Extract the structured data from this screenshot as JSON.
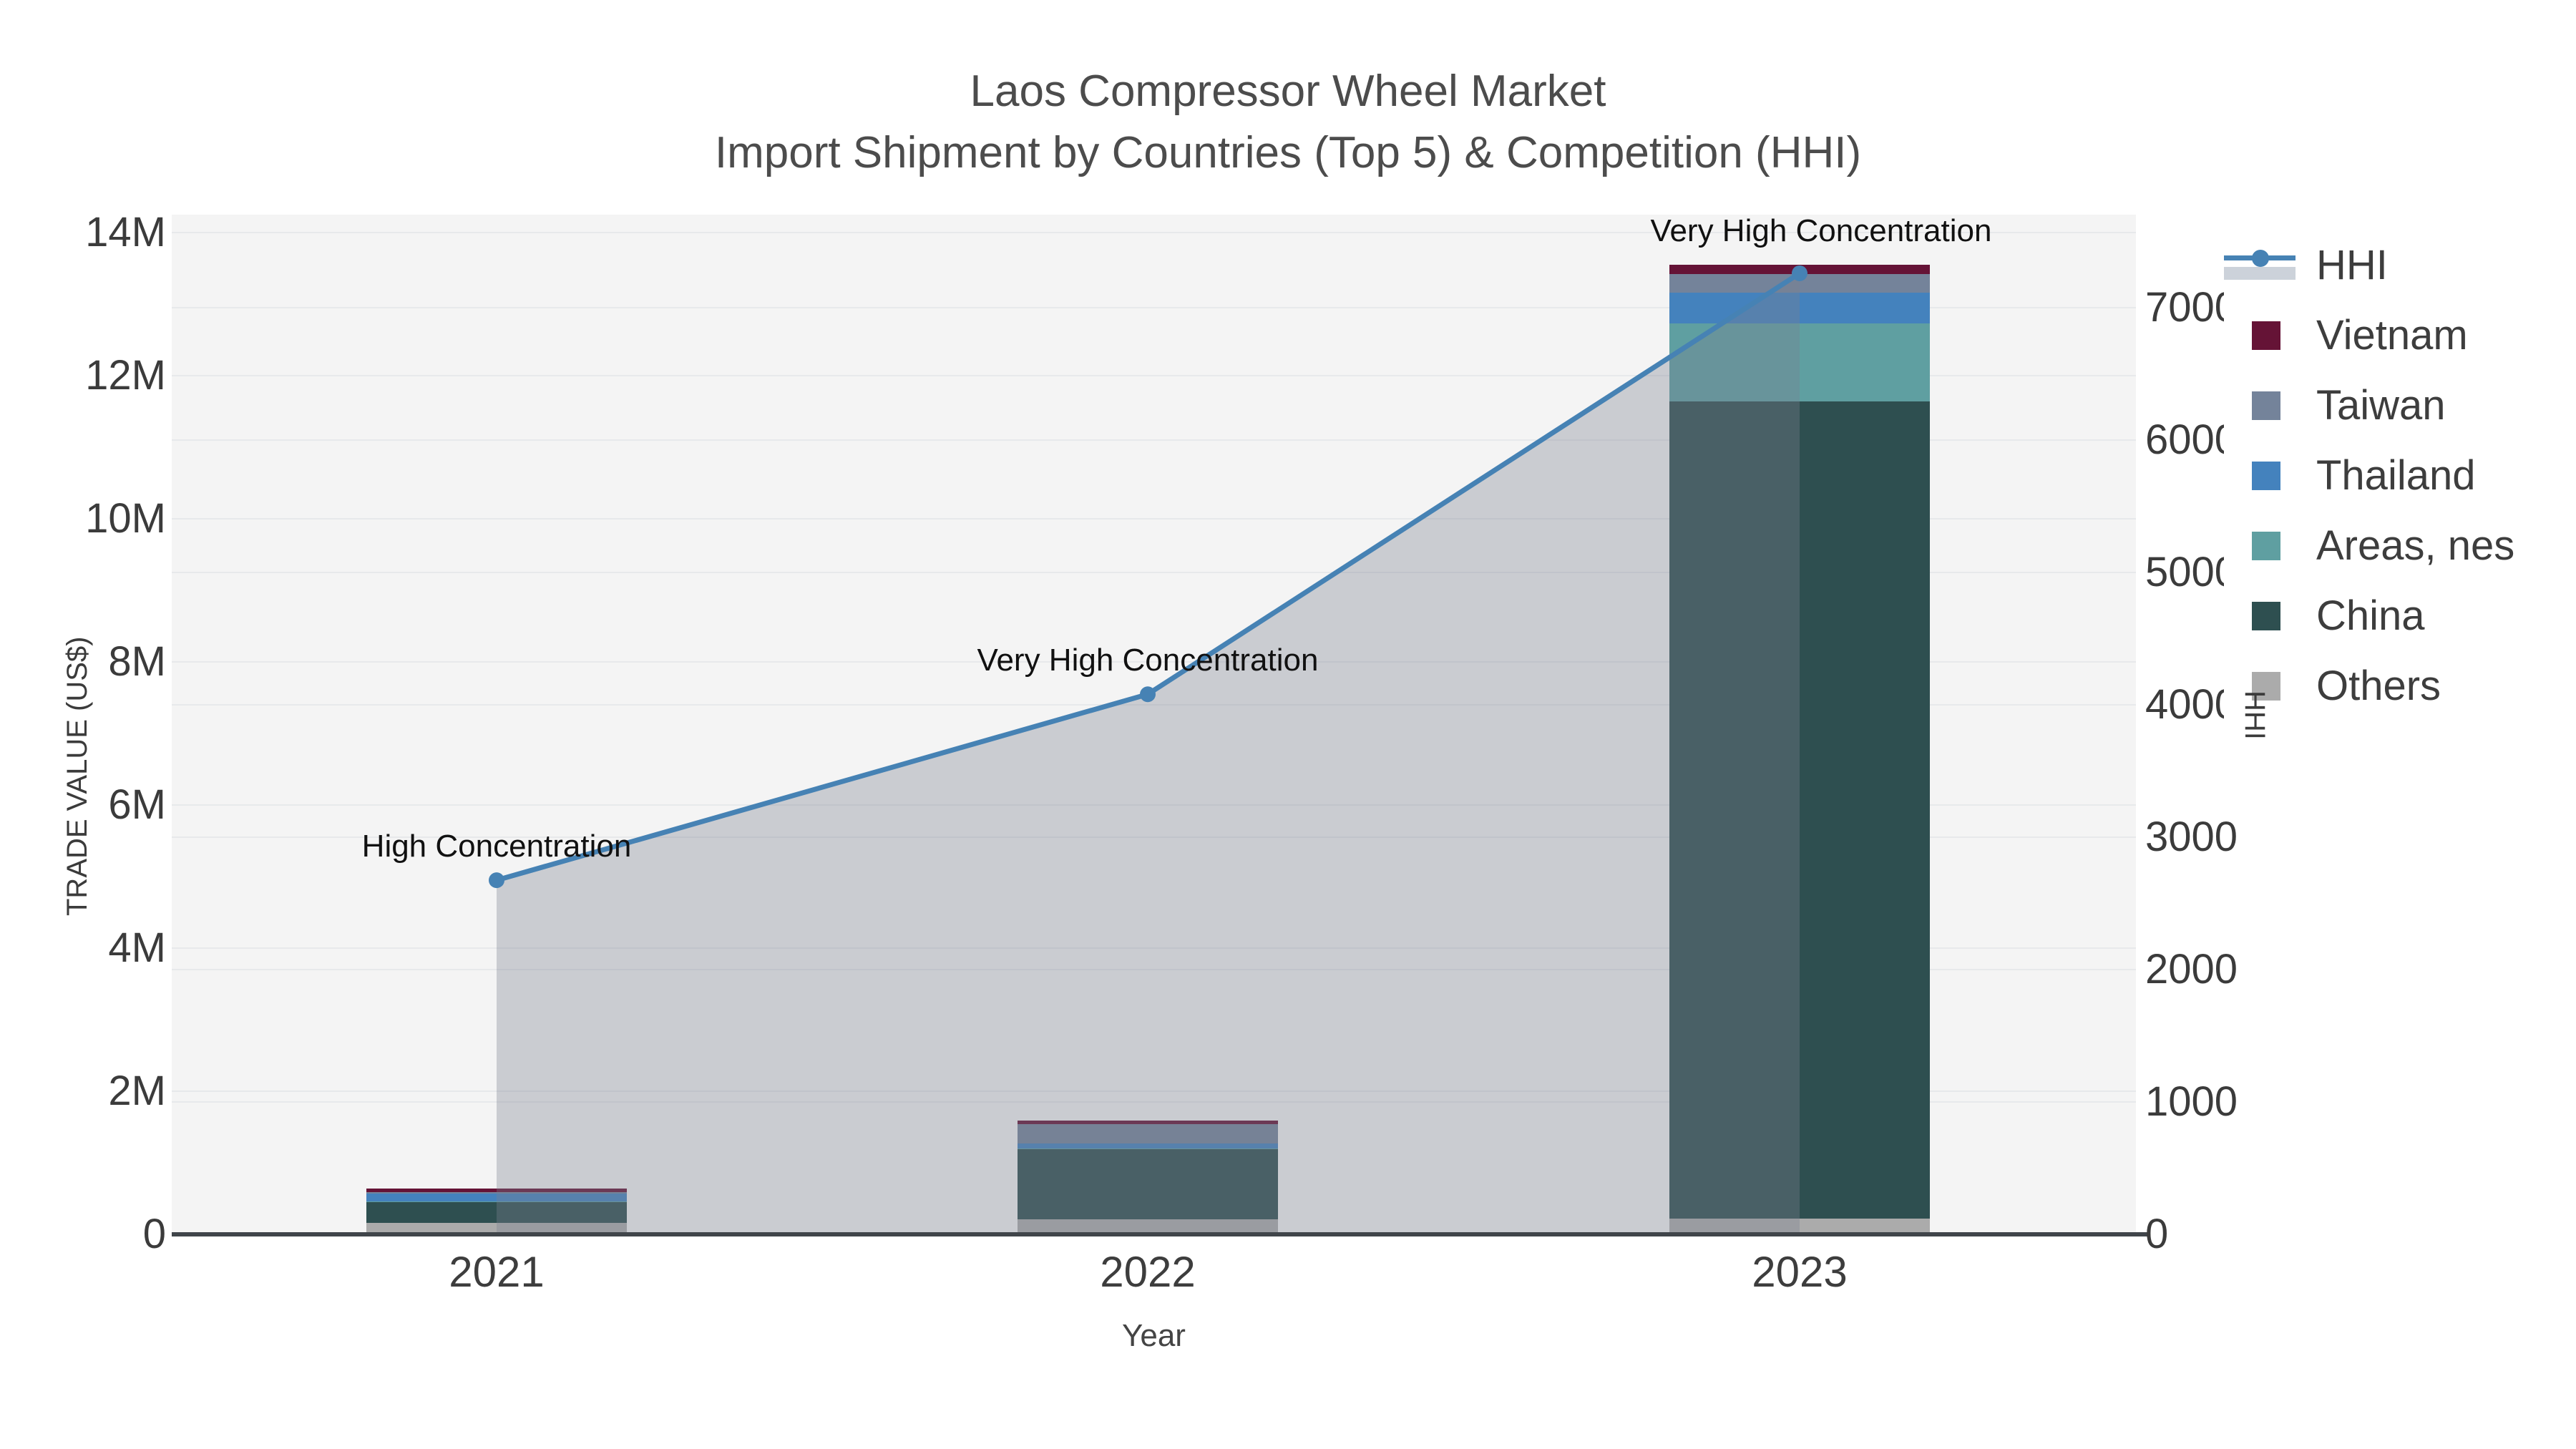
{
  "title": {
    "line1": "Laos Compressor Wheel Market",
    "line2": "Import Shipment by Countries (Top 5) & Competition (HHI)"
  },
  "axes": {
    "x_title": "Year",
    "y_left_title": "TRADE VALUE (US$)",
    "y_right_title": "HHI",
    "y_left_tick_labels": [
      "0",
      "2M",
      "4M",
      "6M",
      "8M",
      "10M",
      "12M",
      "14M"
    ],
    "y_right_tick_labels": [
      "0",
      "1000",
      "2000",
      "3000",
      "4000",
      "5000",
      "6000",
      "7000"
    ],
    "x_tick_labels": [
      "2021",
      "2022",
      "2023"
    ]
  },
  "legend": {
    "items": [
      {
        "label": "HHI",
        "type": "line",
        "color": "#4682b4"
      },
      {
        "label": "Vietnam",
        "type": "bar",
        "color": "#651336"
      },
      {
        "label": "Taiwan",
        "type": "bar",
        "color": "#74839a"
      },
      {
        "label": "Thailand",
        "type": "bar",
        "color": "#4482bd"
      },
      {
        "label": "Areas, nes",
        "type": "bar",
        "color": "#5f9fa1"
      },
      {
        "label": "China",
        "type": "bar",
        "color": "#2e4f50"
      },
      {
        "label": "Others",
        "type": "bar",
        "color": "#ababab"
      }
    ]
  },
  "colors": {
    "plot_background": "#f4f4f4",
    "gridline": "#e7e9eb",
    "axis_line": "#40454a",
    "tick_text": "#3b3b3b",
    "title_text": "#4c4c4c",
    "annotation_text": "#111111",
    "hhi_line": "#4682b4",
    "hhi_fill": "rgba(122,130,144,0.35)",
    "hhi_legend_band": "#ccd2da"
  },
  "chart_data": {
    "type": "bar",
    "subtype": "stacked-bars-with-line-area-overlay",
    "title": "Laos Compressor Wheel Market — Import Shipment by Countries (Top 5) & Competition (HHI)",
    "xlabel": "Year",
    "ylabel_left": "TRADE VALUE (US$)",
    "ylabel_right": "HHI",
    "categories": [
      "2021",
      "2022",
      "2023"
    ],
    "series": [
      {
        "name": "Others",
        "axis": "left",
        "color": "#ababab",
        "values": [
          165000,
          210000,
          220000
        ]
      },
      {
        "name": "China",
        "axis": "left",
        "color": "#2e4f50",
        "values": [
          290000,
          980000,
          11420000
        ]
      },
      {
        "name": "Areas, nes",
        "axis": "left",
        "color": "#5f9fa1",
        "values": [
          10000,
          10000,
          1090000
        ]
      },
      {
        "name": "Thailand",
        "axis": "left",
        "color": "#4482bd",
        "values": [
          110000,
          70000,
          430000
        ]
      },
      {
        "name": "Taiwan",
        "axis": "left",
        "color": "#74839a",
        "values": [
          15000,
          270000,
          265000
        ]
      },
      {
        "name": "Vietnam",
        "axis": "left",
        "color": "#651336",
        "values": [
          55000,
          50000,
          125000
        ]
      }
    ],
    "bar_totals": [
      645000,
      1590000,
      13550000
    ],
    "line_series": {
      "name": "HHI",
      "axis": "right",
      "color": "#4682b4",
      "fill_color": "rgba(122,130,144,0.35)",
      "values": [
        2675,
        4080,
        7260
      ],
      "fill": "tozeroy",
      "markers": true
    },
    "annotations": [
      {
        "x": "2021",
        "text": "High Concentration"
      },
      {
        "x": "2022",
        "text": "Very High Concentration"
      },
      {
        "x": "2023",
        "text": "Very High Concentration"
      }
    ],
    "ylim_left": [
      0,
      14250000
    ],
    "ylim_right": [
      0,
      7703
    ],
    "grid": true,
    "legend_position": "right"
  }
}
